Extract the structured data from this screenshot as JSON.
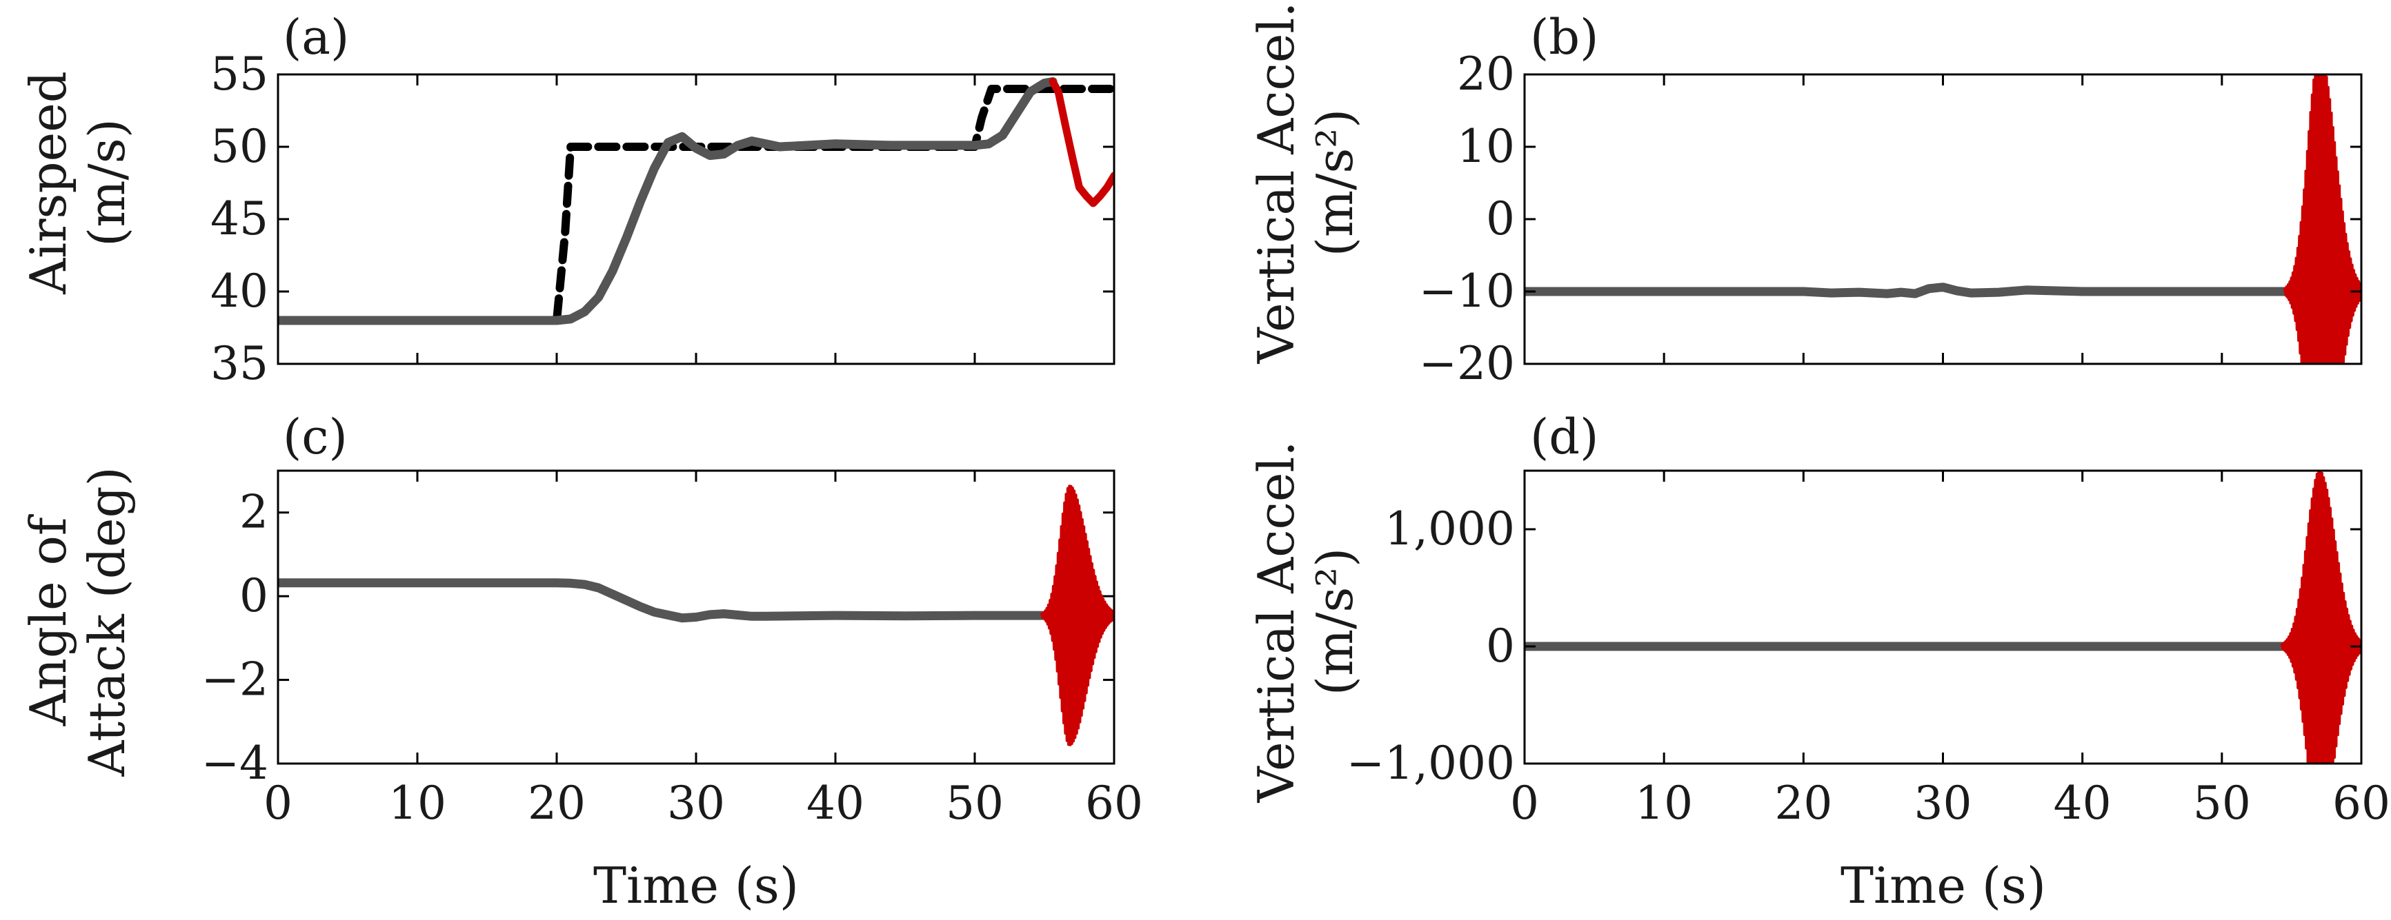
{
  "figure": {
    "colors": {
      "nominal": "#555555",
      "reference": "#000000",
      "unstable": "#cc0000",
      "axis": "#000000"
    }
  },
  "chart_data": [
    {
      "type": "line",
      "panel": "(a)",
      "ylabel_lines": [
        "Airspeed",
        "(m/s)"
      ],
      "xlabel": "",
      "xlim": [
        0,
        60
      ],
      "ylim": [
        35,
        55
      ],
      "xticks": [],
      "yticks": [
        "35",
        "40",
        "45",
        "50",
        "55"
      ],
      "series": [
        {
          "name": "reference",
          "style": "dashed",
          "x": [
            0,
            20,
            20.6,
            21,
            50,
            50.5,
            51.2,
            60
          ],
          "y": [
            38,
            38,
            44,
            50,
            50,
            52,
            54,
            54
          ]
        },
        {
          "name": "airspeed",
          "style": "solid",
          "x": [
            0,
            20,
            21,
            22,
            23,
            24,
            25,
            26,
            27,
            28,
            29,
            30,
            31,
            32,
            33,
            34,
            35,
            36,
            40,
            44,
            48,
            50,
            51,
            52,
            53,
            54,
            55,
            55.6
          ],
          "y": [
            38,
            38,
            38.1,
            38.6,
            39.6,
            41.4,
            43.7,
            46.2,
            48.5,
            50.3,
            50.7,
            49.9,
            49.4,
            49.5,
            50.1,
            50.4,
            50.2,
            50,
            50.2,
            50.1,
            50.1,
            50.1,
            50.2,
            50.8,
            52.3,
            53.8,
            54.4,
            54.5
          ]
        },
        {
          "name": "unstable",
          "style": "solid",
          "x": [
            55.6,
            56,
            56.5,
            57,
            57.5,
            58,
            58.5,
            59,
            59.5,
            60
          ],
          "y": [
            54.5,
            53.8,
            51.5,
            49.3,
            47.2,
            46.6,
            46.1,
            46.6,
            47.2,
            48
          ]
        }
      ]
    },
    {
      "type": "line",
      "panel": "(b)",
      "ylabel_lines": [
        "Vertical Accel.",
        "(m/s²)"
      ],
      "xlabel": "",
      "xlim": [
        0,
        60
      ],
      "ylim": [
        -20,
        20
      ],
      "xticks": [],
      "yticks": [
        "−20",
        "−10",
        "0",
        "10",
        "20"
      ],
      "series": [
        {
          "name": "nominal",
          "style": "solid",
          "x": [
            0,
            10,
            20,
            22,
            24,
            26,
            27,
            28,
            29,
            30,
            31,
            32,
            34,
            36,
            40,
            45,
            50,
            52,
            54,
            54.5
          ],
          "y": [
            -10,
            -10,
            -10,
            -10.2,
            -10.1,
            -10.3,
            -10.1,
            -10.3,
            -9.6,
            -9.4,
            -9.9,
            -10.2,
            -10.1,
            -9.8,
            -10,
            -10,
            -10,
            -10,
            -10,
            -10
          ]
        },
        {
          "name": "unstable",
          "style": "oscillation",
          "t_start": 54.5,
          "t_center": 57,
          "t_end": 60,
          "baseline": -10,
          "amplitude": 33,
          "cycles": 48
        }
      ]
    },
    {
      "type": "line",
      "panel": "(c)",
      "ylabel_lines": [
        "Angle of",
        "Attack (deg)"
      ],
      "xlabel": "Time (s)",
      "xlim": [
        0,
        60
      ],
      "ylim": [
        -4,
        3
      ],
      "xticks": [
        "0",
        "10",
        "20",
        "30",
        "40",
        "50",
        "60"
      ],
      "yticks": [
        "−4",
        "−2",
        "0",
        "2"
      ],
      "series": [
        {
          "name": "nominal",
          "style": "solid",
          "x": [
            0,
            20,
            21,
            22,
            23,
            24,
            25,
            26,
            27,
            28,
            29,
            30,
            31,
            32,
            33,
            34,
            35,
            40,
            45,
            50,
            54.8
          ],
          "y": [
            0.32,
            0.32,
            0.31,
            0.28,
            0.2,
            0.05,
            -0.1,
            -0.25,
            -0.38,
            -0.45,
            -0.52,
            -0.5,
            -0.44,
            -0.42,
            -0.45,
            -0.48,
            -0.48,
            -0.46,
            -0.47,
            -0.46,
            -0.46
          ]
        },
        {
          "name": "unstable",
          "style": "oscillation",
          "t_start": 54.8,
          "t_center": 56.8,
          "t_end": 60,
          "baseline": -0.46,
          "amplitude": 3.1,
          "cycles": 45
        }
      ]
    },
    {
      "type": "line",
      "panel": "(d)",
      "ylabel_lines": [
        "Vertical Accel.",
        "(m/s²)"
      ],
      "xlabel": "Time (s)",
      "xlim": [
        0,
        60
      ],
      "ylim": [
        -1000,
        1500
      ],
      "xticks": [
        "0",
        "10",
        "20",
        "30",
        "40",
        "50",
        "60"
      ],
      "yticks": [
        "−1,000",
        "0",
        "1,000"
      ],
      "series": [
        {
          "name": "nominal",
          "style": "solid",
          "x": [
            0,
            20,
            30,
            40,
            50,
            54.3
          ],
          "y": [
            0,
            0,
            0,
            0,
            0,
            0
          ]
        },
        {
          "name": "unstable",
          "style": "oscillation",
          "t_start": 54.3,
          "t_center": 57,
          "t_end": 60,
          "baseline": 0,
          "amplitude": 1500,
          "cycles": 48
        }
      ]
    }
  ]
}
